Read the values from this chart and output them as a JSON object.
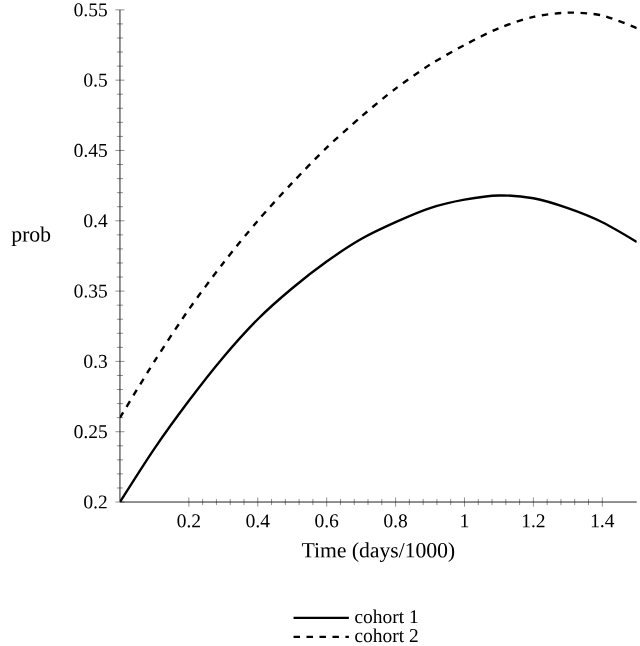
{
  "chart_data": {
    "type": "line",
    "xlabel": "Time (days/1000)",
    "ylabel": "prob",
    "x": [
      0,
      0.1,
      0.2,
      0.3,
      0.4,
      0.5,
      0.6,
      0.7,
      0.8,
      0.9,
      1.0,
      1.1,
      1.2,
      1.3,
      1.4,
      1.5
    ],
    "series": [
      {
        "name": "cohort 1",
        "color": "#000000",
        "line_style": "solid",
        "values": [
          0.2,
          0.238,
          0.272,
          0.303,
          0.33,
          0.352,
          0.371,
          0.387,
          0.399,
          0.409,
          0.415,
          0.418,
          0.416,
          0.409,
          0.399,
          0.385
        ]
      },
      {
        "name": "cohort 2",
        "color": "#000000",
        "line_style": "dashed",
        "values": [
          0.26,
          0.3,
          0.337,
          0.37,
          0.4,
          0.427,
          0.452,
          0.474,
          0.494,
          0.511,
          0.525,
          0.537,
          0.545,
          0.548,
          0.546,
          0.537
        ]
      }
    ],
    "xlim": [
      0,
      1.5
    ],
    "ylim": [
      0.2,
      0.55
    ],
    "xticks": [
      0.2,
      0.4,
      0.6,
      0.8,
      1,
      1.2,
      1.4
    ],
    "yticks": [
      0.2,
      0.25,
      0.3,
      0.35,
      0.4,
      0.45,
      0.5,
      0.55
    ],
    "legend": "bottom",
    "grid": false
  }
}
